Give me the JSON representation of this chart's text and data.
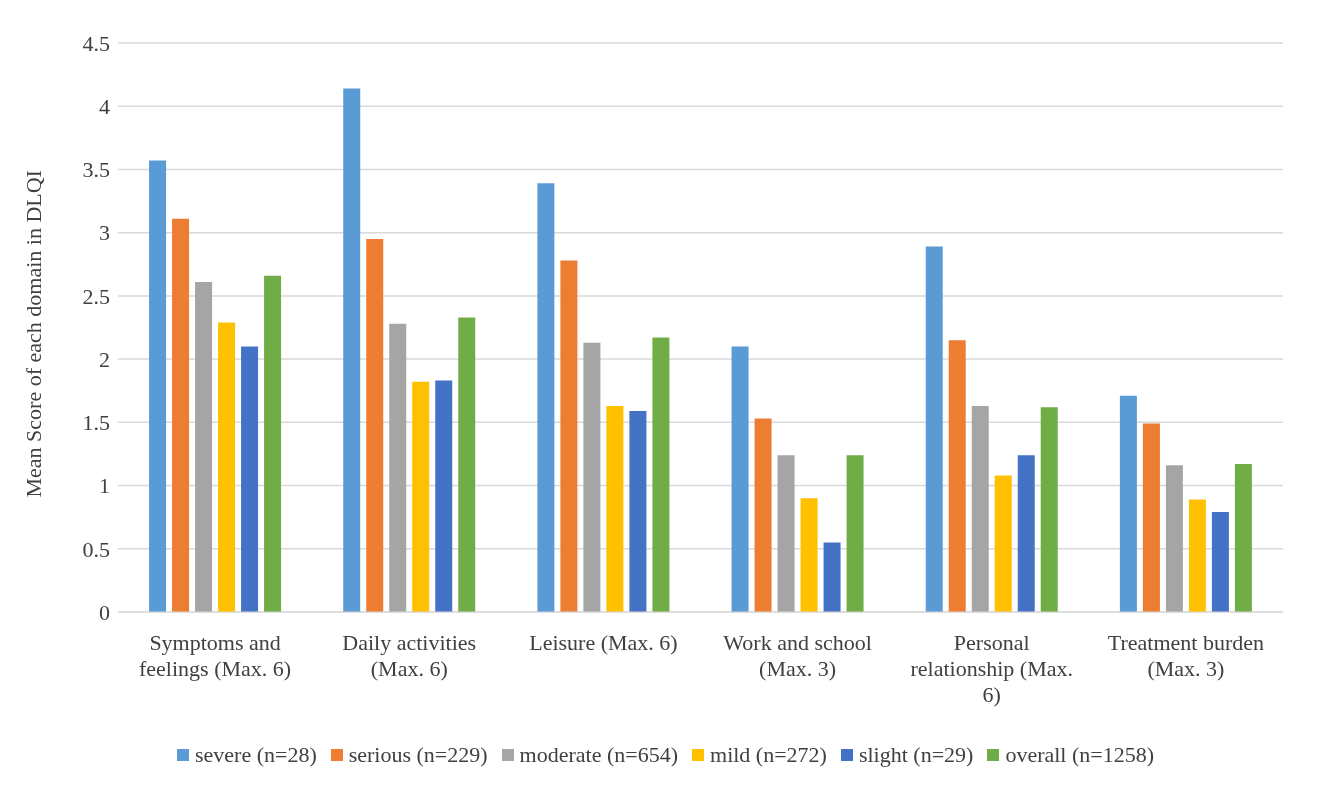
{
  "chart_data": {
    "type": "bar",
    "ylabel": "Mean Score of each domain in DLQI",
    "categories": [
      "Symptoms and feelings (Max. 6)",
      "Daily activities (Max. 6)",
      "Leisure (Max. 6)",
      "Work and school (Max. 3)",
      "Personal relationship (Max. 6)",
      "Treatment burden (Max. 3)"
    ],
    "series": [
      {
        "name": "severe (n=28)",
        "color": "#5b9bd5",
        "values": [
          3.57,
          4.14,
          3.39,
          2.1,
          2.89,
          1.71
        ]
      },
      {
        "name": "serious (n=229)",
        "color": "#ed7d31",
        "values": [
          3.11,
          2.95,
          2.78,
          1.53,
          2.15,
          1.49
        ]
      },
      {
        "name": "moderate (n=654)",
        "color": "#a5a5a5",
        "values": [
          2.61,
          2.28,
          2.13,
          1.24,
          1.63,
          1.16
        ]
      },
      {
        "name": "mild (n=272)",
        "color": "#ffc000",
        "values": [
          2.29,
          1.82,
          1.63,
          0.9,
          1.08,
          0.89
        ]
      },
      {
        "name": "slight (n=29)",
        "color": "#4472c4",
        "values": [
          2.1,
          1.83,
          1.59,
          0.55,
          1.24,
          0.79
        ]
      },
      {
        "name": "overall (n=1258)",
        "color": "#70ad47",
        "values": [
          2.66,
          2.33,
          2.17,
          1.24,
          1.62,
          1.17
        ]
      }
    ],
    "ylim": [
      0,
      4.5
    ],
    "yticks": [
      0,
      0.5,
      1,
      1.5,
      2,
      2.5,
      3,
      3.5,
      4,
      4.5
    ],
    "grid": "y",
    "legend": "bottom"
  }
}
